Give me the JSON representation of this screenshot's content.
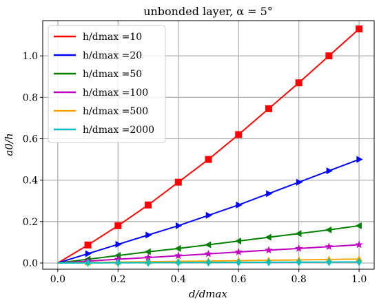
{
  "chart_data": {
    "type": "line",
    "title": "unbonded layer, α = 5°",
    "xlabel": "d/dmax",
    "ylabel": "a0/h",
    "xlim": [
      -0.05,
      1.05
    ],
    "ylim": [
      -0.03,
      1.17
    ],
    "xticks": [
      0.0,
      0.2,
      0.4,
      0.6,
      0.8,
      1.0
    ],
    "yticks": [
      0.0,
      0.2,
      0.4,
      0.6,
      0.8,
      1.0
    ],
    "xtick_labels": [
      "0.0",
      "0.2",
      "0.4",
      "0.6",
      "0.8",
      "1.0"
    ],
    "ytick_labels": [
      "0.0",
      "0.2",
      "0.4",
      "0.6",
      "0.8",
      "1.0"
    ],
    "grid": true,
    "legend_position": "top-left",
    "x": [
      0.0,
      0.1,
      0.2,
      0.3,
      0.4,
      0.5,
      0.6,
      0.7,
      0.8,
      0.9,
      1.0
    ],
    "series": [
      {
        "name": "h/dmax =10",
        "color": "#ff0000",
        "marker": "square",
        "values": [
          0.0,
          0.087,
          0.18,
          0.28,
          0.39,
          0.5,
          0.62,
          0.745,
          0.87,
          1.0,
          1.13
        ]
      },
      {
        "name": "h/dmax =20",
        "color": "#0000ff",
        "marker": "triangle-right",
        "values": [
          0.0,
          0.045,
          0.09,
          0.135,
          0.18,
          0.23,
          0.28,
          0.335,
          0.39,
          0.445,
          0.5
        ]
      },
      {
        "name": "h/dmax =50",
        "color": "#008000",
        "marker": "triangle-left",
        "values": [
          0.0,
          0.018,
          0.036,
          0.054,
          0.07,
          0.088,
          0.106,
          0.124,
          0.142,
          0.16,
          0.18
        ]
      },
      {
        "name": "h/dmax =100",
        "color": "#c000c0",
        "marker": "star",
        "values": [
          0.0,
          0.009,
          0.018,
          0.026,
          0.035,
          0.044,
          0.053,
          0.062,
          0.07,
          0.079,
          0.088
        ]
      },
      {
        "name": "h/dmax =500",
        "color": "#ffa500",
        "marker": "triangle-up",
        "values": [
          0.0,
          0.002,
          0.004,
          0.006,
          0.008,
          0.009,
          0.011,
          0.013,
          0.015,
          0.017,
          0.019
        ]
      },
      {
        "name": "h/dmax =2000",
        "color": "#00bfbf",
        "marker": "diamond",
        "values": [
          0.0,
          0.0005,
          0.001,
          0.0015,
          0.002,
          0.0025,
          0.003,
          0.0035,
          0.004,
          0.0045,
          0.005
        ]
      }
    ]
  }
}
